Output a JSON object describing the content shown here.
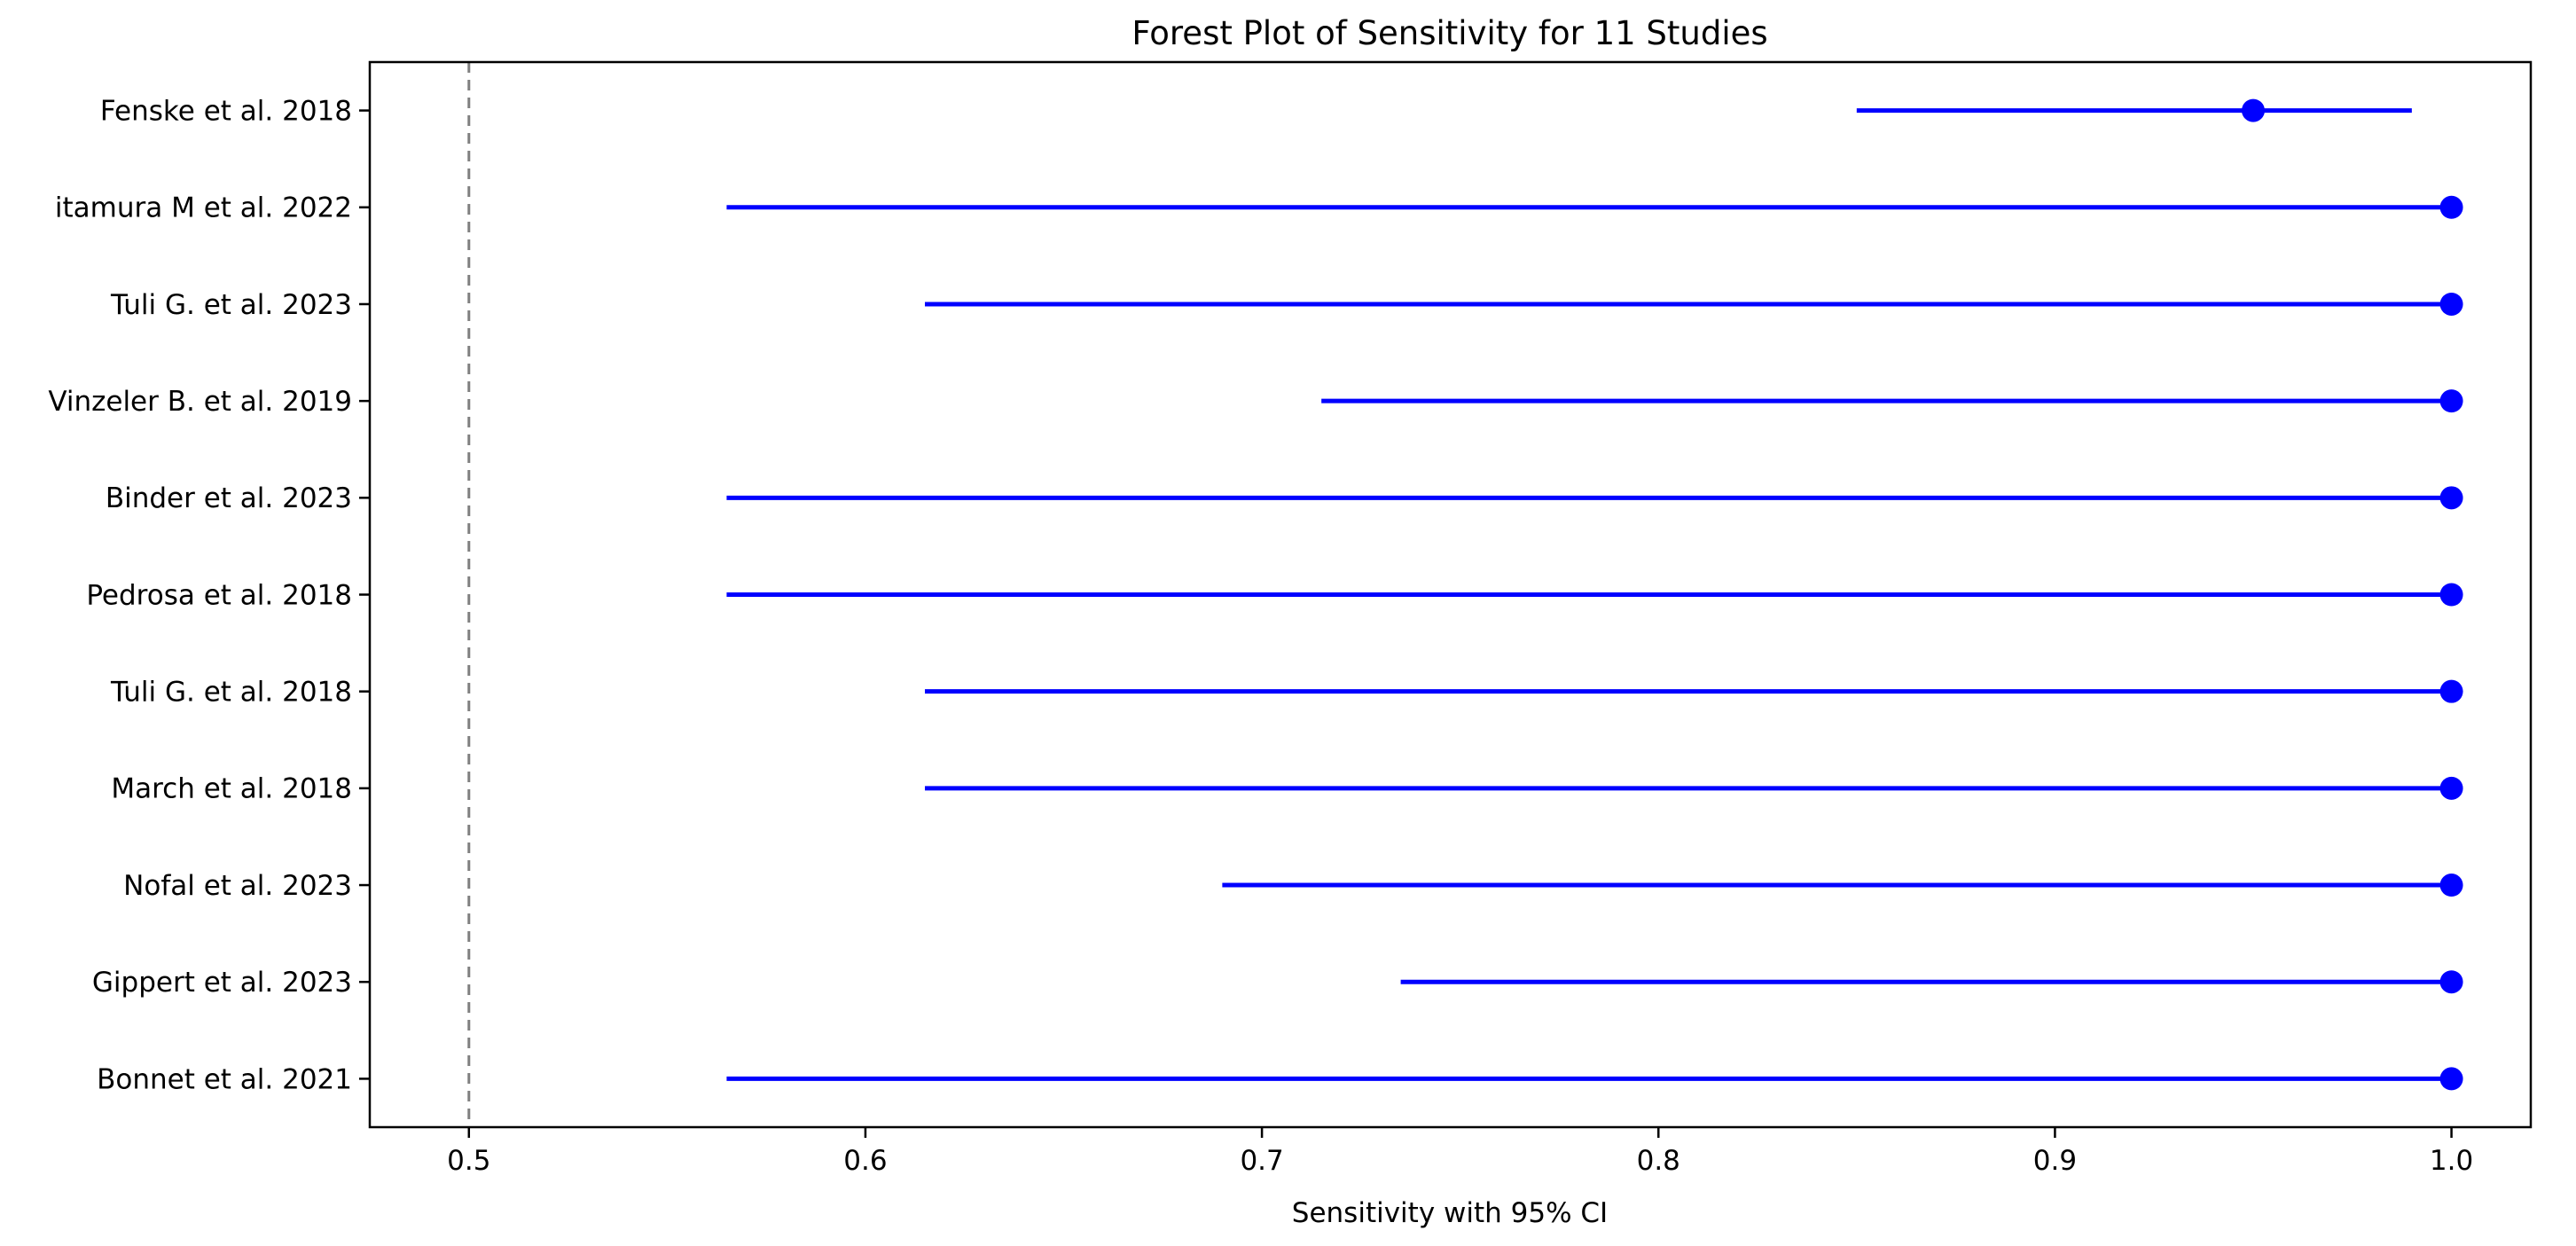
{
  "chart_data": {
    "type": "forest",
    "title": "Forest Plot of Sensitivity for 11 Studies",
    "xlabel": "Sensitivity with 95% CI",
    "xlim": [
      0.475,
      1.02
    ],
    "xticks": [
      0.5,
      0.6,
      0.7,
      0.8,
      0.9,
      1.0
    ],
    "xtick_labels": [
      "0.5",
      "0.6",
      "0.7",
      "0.8",
      "0.9",
      "1.0"
    ],
    "reference_line_x": 0.5,
    "grid": false,
    "marker_color": "#0000ff",
    "ci_line_color": "#0000ff",
    "reference_line_color": "#7f7f7f",
    "axis_color": "#000000",
    "background_color": "#ffffff",
    "studies": [
      {
        "label": "Fenske et al. 2018",
        "estimate": 0.95,
        "ci_low": 0.85,
        "ci_high": 0.99
      },
      {
        "label": "itamura M et al. 2022",
        "estimate": 1.0,
        "ci_low": 0.565,
        "ci_high": 1.0
      },
      {
        "label": "Tuli G. et al. 2023",
        "estimate": 1.0,
        "ci_low": 0.615,
        "ci_high": 1.0
      },
      {
        "label": "Vinzeler B. et al. 2019",
        "estimate": 1.0,
        "ci_low": 0.715,
        "ci_high": 1.0
      },
      {
        "label": "Binder et al. 2023",
        "estimate": 1.0,
        "ci_low": 0.565,
        "ci_high": 1.0
      },
      {
        "label": "Pedrosa et al. 2018",
        "estimate": 1.0,
        "ci_low": 0.565,
        "ci_high": 1.0
      },
      {
        "label": "Tuli G. et al. 2018",
        "estimate": 1.0,
        "ci_low": 0.615,
        "ci_high": 1.0
      },
      {
        "label": "March et al. 2018",
        "estimate": 1.0,
        "ci_low": 0.615,
        "ci_high": 1.0
      },
      {
        "label": "Nofal et al. 2023",
        "estimate": 1.0,
        "ci_low": 0.69,
        "ci_high": 1.0
      },
      {
        "label": "Gippert et al. 2023",
        "estimate": 1.0,
        "ci_low": 0.735,
        "ci_high": 1.0
      },
      {
        "label": "Bonnet et al. 2021",
        "estimate": 1.0,
        "ci_low": 0.565,
        "ci_high": 1.0
      }
    ]
  }
}
